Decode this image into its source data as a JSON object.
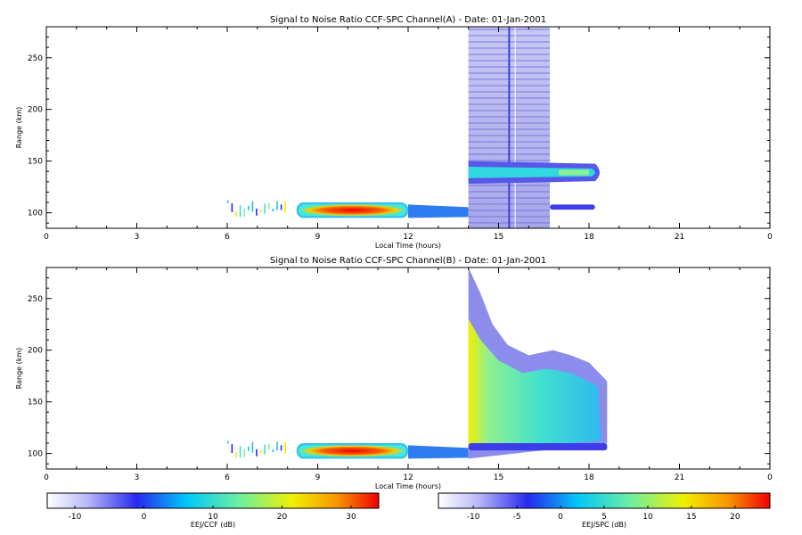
{
  "chart_data": [
    {
      "type": "heatmap",
      "title": "Signal to Noise Ratio CCF-SPC Channel(A) - Date: 01-Jan-2001",
      "xlabel": "Local Time (hours)",
      "ylabel": "Range (km)",
      "xlim": [
        0,
        24
      ],
      "ylim": [
        85,
        280
      ],
      "xticks": [
        "0",
        "3",
        "6",
        "9",
        "12",
        "15",
        "18",
        "21",
        "0"
      ],
      "yticks": [
        100,
        150,
        200,
        250
      ],
      "colorbar": {
        "label": "EEJ/CCF (dB)",
        "range": [
          -14,
          34
        ],
        "ticks": [
          -10,
          0,
          10,
          20,
          30
        ]
      },
      "features": [
        {
          "name": "sparse echoes",
          "x": [
            6.0,
            8.0
          ],
          "y": [
            95,
            112
          ],
          "snr_db": 2
        },
        {
          "name": "strong EEJ layer",
          "x": [
            8.3,
            12.0
          ],
          "y": [
            95,
            110
          ],
          "snr_db": 28
        },
        {
          "name": "weak EEJ layer",
          "x": [
            12.0,
            14.0
          ],
          "y": [
            95,
            108
          ],
          "snr_db": -2
        },
        {
          "name": "broadband noise",
          "x": [
            14.0,
            16.7
          ],
          "y": [
            85,
            280
          ],
          "snr_db": -8
        },
        {
          "name": "upper layer",
          "x": [
            14.0,
            18.5
          ],
          "y": [
            128,
            150
          ],
          "snr_db": 5
        },
        {
          "name": "lower thin layer",
          "x": [
            16.7,
            18.2
          ],
          "y": [
            103,
            108
          ],
          "snr_db": -5
        }
      ]
    },
    {
      "type": "heatmap",
      "title": "Signal to Noise Ratio CCF-SPC Channel(B) - Date: 01-Jan-2001",
      "xlabel": "Local Time (hours)",
      "ylabel": "Range (km)",
      "xlim": [
        0,
        24
      ],
      "ylim": [
        85,
        280
      ],
      "xticks": [
        "0",
        "3",
        "6",
        "9",
        "12",
        "15",
        "18",
        "21",
        "0"
      ],
      "yticks": [
        100,
        150,
        200,
        250
      ],
      "colorbar": {
        "label": "EEJ/SPC (dB)",
        "range": [
          -14,
          24
        ],
        "ticks": [
          -10,
          -5,
          0,
          5,
          10,
          15,
          20
        ]
      },
      "features": [
        {
          "name": "sparse echoes",
          "x": [
            6.0,
            8.0
          ],
          "y": [
            95,
            112
          ],
          "snr_db": 2
        },
        {
          "name": "strong EEJ layer",
          "x": [
            8.3,
            12.0
          ],
          "y": [
            95,
            110
          ],
          "snr_db": 20
        },
        {
          "name": "weak EEJ layer",
          "x": [
            12.0,
            14.0
          ],
          "y": [
            95,
            108
          ],
          "snr_db": -2
        },
        {
          "name": "broad spread echo",
          "x": [
            14.0,
            18.6
          ],
          "y": [
            95,
            280
          ],
          "snr_db": 6
        },
        {
          "name": "lower thin layer",
          "x": [
            14.0,
            18.6
          ],
          "y": [
            103,
            110
          ],
          "snr_db": -3
        }
      ]
    }
  ]
}
